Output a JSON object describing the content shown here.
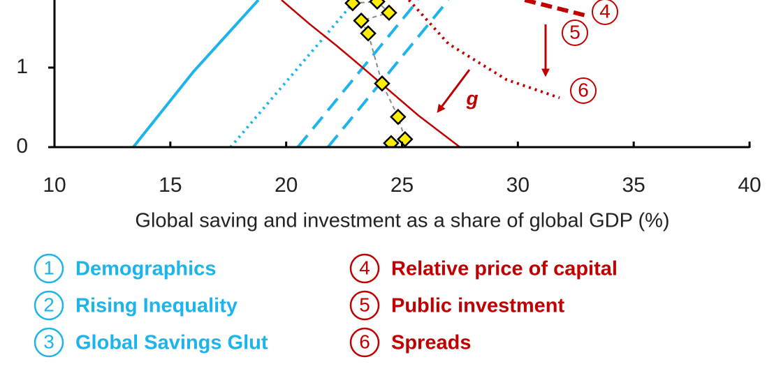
{
  "chart_data": {
    "type": "line",
    "xlabel": "Global saving and investment as a share of global GDP (%)",
    "xlim": [
      10,
      40
    ],
    "xticks": [
      10,
      15,
      20,
      25,
      30,
      35,
      40
    ],
    "ylim": [
      0,
      1.85
    ],
    "yticks": [
      0,
      1
    ],
    "series": [
      {
        "color": "#1cb4ea",
        "style": "solid",
        "x": [
          13.4,
          16,
          18.8
        ],
        "values": [
          0,
          0.95,
          1.85
        ]
      },
      {
        "color": "#1cb4ea",
        "style": "dotted",
        "x": [
          17.6,
          23
        ],
        "values": [
          0,
          1.85
        ]
      },
      {
        "color": "#1cb4ea",
        "style": "dashed",
        "x": [
          20.5,
          25.7
        ],
        "values": [
          0,
          1.85
        ]
      },
      {
        "color": "#1cb4ea",
        "style": "dashed",
        "x": [
          21.8,
          27.0
        ],
        "values": [
          0,
          1.85
        ]
      },
      {
        "color": "#c00000",
        "style": "solid",
        "x": [
          19.8,
          21,
          22.2,
          23.3,
          24.5,
          25.7,
          26.6,
          27.5
        ],
        "values": [
          1.85,
          1.55,
          1.27,
          1.0,
          0.7,
          0.4,
          0.2,
          0
        ]
      },
      {
        "color": "#c00000",
        "style": "dotted",
        "x": [
          25.3,
          27,
          29.5,
          31.8
        ],
        "values": [
          1.85,
          1.3,
          0.85,
          0.62
        ]
      },
      {
        "color": "#c00000",
        "style": "thickdash",
        "x": [
          30.3,
          33
        ],
        "values": [
          1.85,
          1.65
        ]
      },
      {
        "color": "#888888",
        "style": "dashed",
        "marker": "diamond",
        "marker_color": "#ffee00",
        "x": [
          22.87,
          23.93,
          24.44,
          23.24,
          23.54,
          24.14,
          24.83,
          25.13,
          24.53
        ],
        "values": [
          1.81,
          1.83,
          1.69,
          1.59,
          1.43,
          0.8,
          0.38,
          0.1,
          0.05
        ]
      }
    ],
    "annotations": [
      "4",
      "5",
      "6",
      "g"
    ],
    "key": [
      {
        "number": "1",
        "label": "Demographics",
        "color": "#1cb4ea"
      },
      {
        "number": "2",
        "label": "Rising Inequality",
        "color": "#1cb4ea"
      },
      {
        "number": "3",
        "label": "Global Savings Glut",
        "color": "#1cb4ea"
      },
      {
        "number": "4",
        "label": "Relative price of capital",
        "color": "#c00000"
      },
      {
        "number": "5",
        "label": "Public investment",
        "color": "#c00000"
      },
      {
        "number": "6",
        "label": "Spreads",
        "color": "#c00000"
      }
    ]
  }
}
